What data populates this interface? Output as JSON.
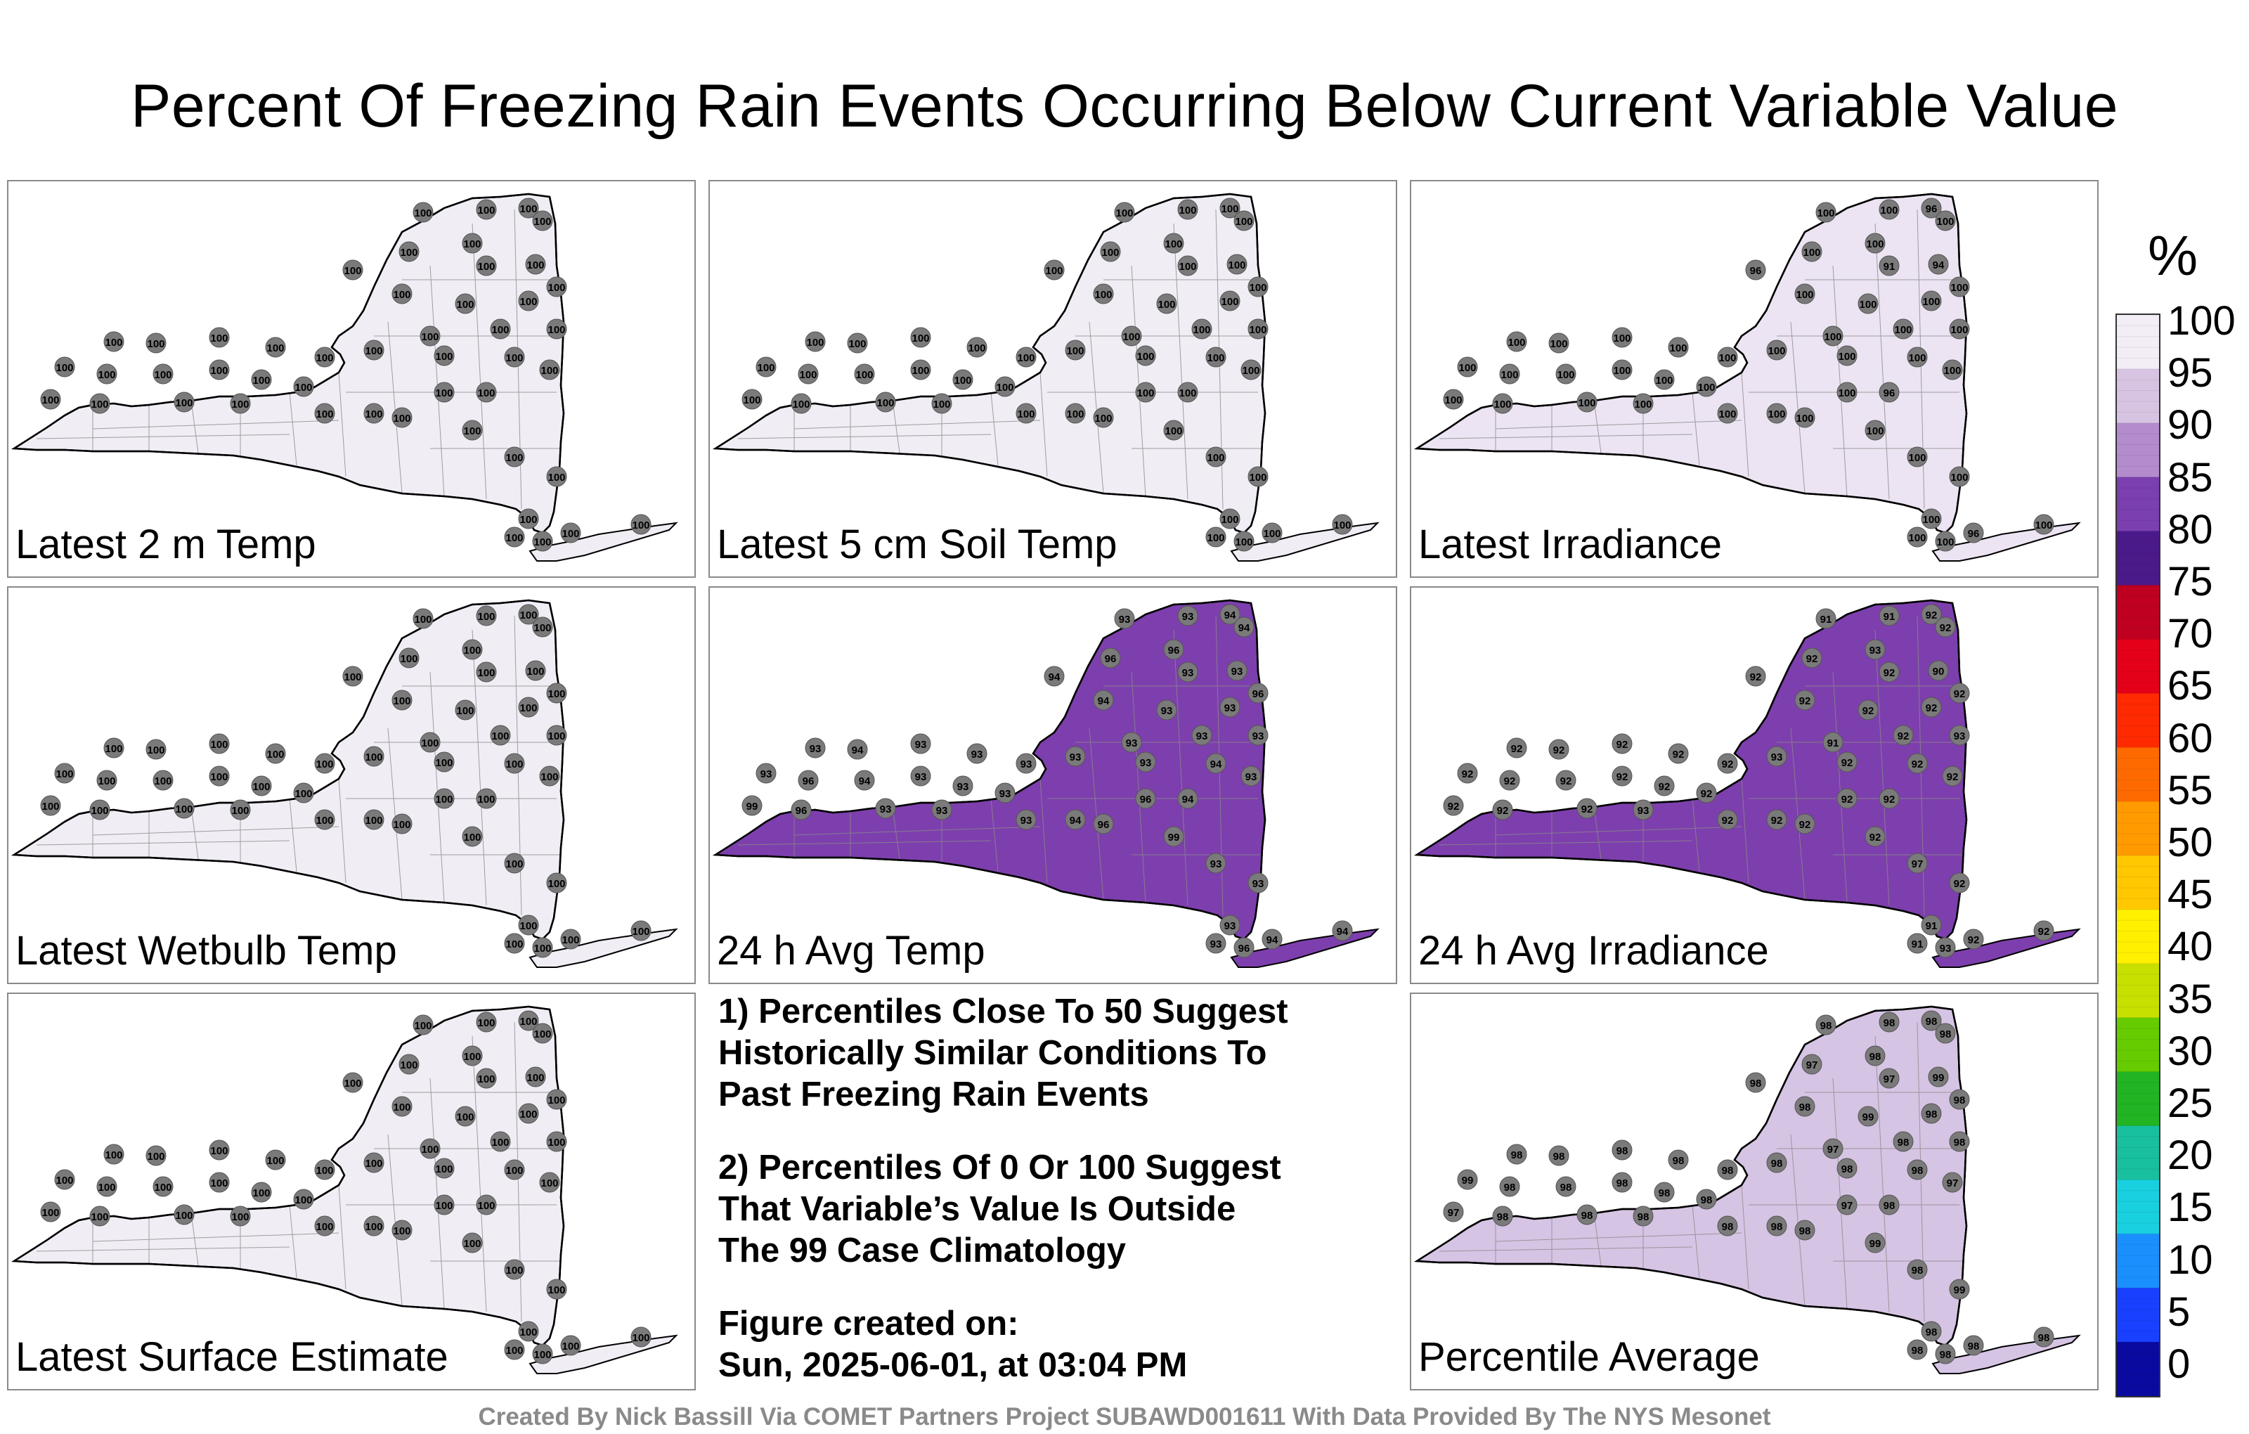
{
  "title": "Percent Of Freezing Rain Events Occurring Below Current Variable Value",
  "panels": [
    {
      "label": "Latest 2 m Temp",
      "scheme": "plain",
      "values": [
        "100",
        "100",
        "100",
        "100",
        "100",
        "100",
        "100",
        "100",
        "100",
        "100",
        "100",
        "100",
        "100",
        "100",
        "100",
        "100",
        "100",
        "100",
        "100",
        "100",
        "100",
        "100",
        "100",
        "100",
        "100",
        "100",
        "100",
        "100",
        "100",
        "100",
        "100",
        "100",
        "100",
        "100",
        "100",
        "100",
        "100",
        "100",
        "100",
        "100"
      ]
    },
    {
      "label": "Latest 5 cm Soil Temp",
      "scheme": "plain",
      "values": [
        "100",
        "100",
        "100",
        "100",
        "100",
        "100",
        "100",
        "100",
        "100",
        "100",
        "100",
        "100",
        "100",
        "100",
        "100",
        "100",
        "100",
        "100",
        "100",
        "100",
        "100",
        "100",
        "100",
        "100",
        "100",
        "100",
        "100",
        "100",
        "100",
        "100",
        "100",
        "100",
        "100",
        "100",
        "100",
        "100",
        "100",
        "100",
        "100",
        "100"
      ]
    },
    {
      "label": "Latest Irradiance",
      "scheme": "light",
      "values": [
        "100",
        "100",
        "96",
        "100",
        "100",
        "100",
        "96",
        "100",
        "91",
        "94",
        "100",
        "100",
        "100",
        "100",
        "100",
        "100",
        "100",
        "100",
        "100",
        "100",
        "100",
        "100",
        "100",
        "100",
        "100",
        "100",
        "100",
        "100",
        "100",
        "100",
        "100",
        "100",
        "100",
        "100",
        "100",
        "100",
        "100",
        "100",
        "100",
        "100"
      ]
    },
    {
      "label": "Latest Wetbulb Temp",
      "scheme": "plain",
      "values": [
        "100",
        "100",
        "100",
        "100",
        "100",
        "100",
        "100",
        "100",
        "100",
        "100",
        "100",
        "100",
        "100",
        "100",
        "100",
        "100",
        "100",
        "100",
        "100",
        "100",
        "100",
        "100",
        "100",
        "100",
        "100",
        "100",
        "100",
        "100",
        "100",
        "100",
        "100",
        "100",
        "100",
        "100",
        "100",
        "100",
        "100",
        "100",
        "100",
        "100"
      ]
    },
    {
      "label": "24 h Avg Temp",
      "scheme": "dark",
      "values": [
        "93",
        "93",
        "94",
        "94",
        "96",
        "96",
        "94",
        "94",
        "93",
        "93",
        "93",
        "93",
        "96",
        "93",
        "93",
        "93",
        "93",
        "93",
        "94",
        "93",
        "93",
        "94",
        "93",
        "93",
        "93",
        "93",
        "96",
        "94",
        "93",
        "93",
        "93",
        "99",
        "96",
        "93",
        "93",
        "93",
        "96",
        "99",
        "93",
        "93"
      ]
    },
    {
      "label": "24 h Avg Irradiance",
      "scheme": "dark",
      "values": [
        "91",
        "91",
        "92",
        "92",
        "93",
        "92",
        "92",
        "92",
        "92",
        "90",
        "92",
        "92",
        "92",
        "91",
        "92",
        "93",
        "93",
        "92",
        "92",
        "92",
        "92",
        "92",
        "92",
        "92",
        "92",
        "92",
        "92",
        "92",
        "92",
        "92",
        "92",
        "92",
        "92",
        "92",
        "93",
        "92",
        "92",
        "92",
        "97",
        "92"
      ]
    },
    {
      "label": "Latest Surface Estimate",
      "scheme": "plain",
      "values": [
        "100",
        "100",
        "100",
        "100",
        "100",
        "100",
        "100",
        "100",
        "100",
        "100",
        "100",
        "100",
        "100",
        "100",
        "100",
        "100",
        "100",
        "100",
        "100",
        "100",
        "100",
        "100",
        "100",
        "100",
        "100",
        "100",
        "100",
        "100",
        "100",
        "100",
        "100",
        "100",
        "100",
        "100",
        "100",
        "100",
        "100",
        "100",
        "100",
        "100"
      ]
    },
    {
      "label": "Percentile Average",
      "scheme": "medium",
      "values": [
        "98",
        "98",
        "98",
        "98",
        "98",
        "97",
        "98",
        "98",
        "97",
        "99",
        "99",
        "98",
        "98",
        "97",
        "98",
        "98",
        "98",
        "98",
        "98",
        "97",
        "98",
        "98",
        "98",
        "98",
        "98",
        "99",
        "98",
        "98",
        "98",
        "98",
        "98",
        "97",
        "98",
        "98",
        "98",
        "98",
        "98",
        "99",
        "98",
        "99"
      ]
    }
  ],
  "notes": {
    "note1": "1) Percentiles Close To 50 Suggest\nHistorically Similar Conditions To\nPast Freezing Rain Events",
    "note2": "2) Percentiles Of 0 Or 100 Suggest\nThat Variable’s Value Is Outside\nThe 99 Case Climatology",
    "created": "Figure created on:\nSun, 2025-06-01, at 03:04 PM"
  },
  "footer": "Created By Nick Bassill Via COMET Partners Project SUBAWD001611 With Data Provided By The NYS Mesonet",
  "colorbar": {
    "unit": "%",
    "ticks": [
      "100",
      "95",
      "90",
      "85",
      "80",
      "75",
      "70",
      "65",
      "60",
      "55",
      "50",
      "45",
      "40",
      "35",
      "30",
      "25",
      "20",
      "15",
      "10",
      "5",
      "0"
    ],
    "colors": [
      "#f3eef6",
      "#d7c4e2",
      "#b48ccd",
      "#7b3fb0",
      "#4b1a8a",
      "#c00021",
      "#e5001a",
      "#ff2a00",
      "#ff6a00",
      "#ff9a00",
      "#ffc800",
      "#fff000",
      "#c8e000",
      "#66cc00",
      "#22b422",
      "#18c0a0",
      "#18d0e0",
      "#1a90ff",
      "#1a40ff",
      "#0a0aa0",
      "#000000"
    ]
  },
  "scheme_colors": {
    "plain": "#f1edf5",
    "light": "#ece4f2",
    "medium": "#d6c4e4",
    "dark": "#7d3fad"
  }
}
